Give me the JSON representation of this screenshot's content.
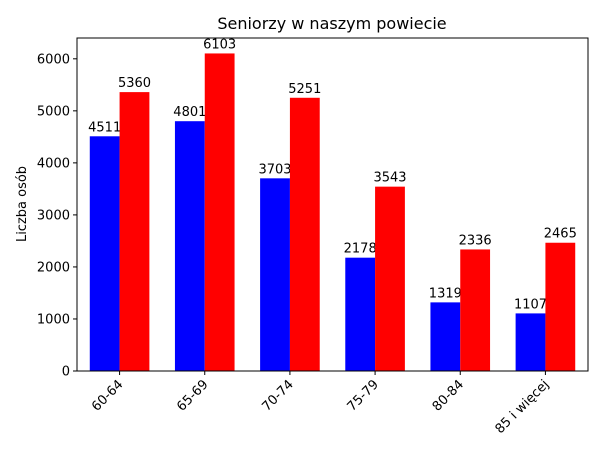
{
  "chart_data": {
    "type": "bar",
    "title": "Seniorzy w naszym powiecie",
    "xlabel": "",
    "ylabel": "Liczba osób",
    "categories": [
      "60-64",
      "65-69",
      "70-74",
      "75-79",
      "80-84",
      "85 i więcej"
    ],
    "series": [
      {
        "color": "#0000ff",
        "values": [
          4511,
          4801,
          3703,
          2178,
          1319,
          1107
        ]
      },
      {
        "color": "#ff0000",
        "values": [
          5360,
          6103,
          5251,
          3543,
          2336,
          2465
        ]
      }
    ],
    "ylim": [
      0,
      6400
    ],
    "yticks": [
      0,
      1000,
      2000,
      3000,
      4000,
      5000,
      6000
    ],
    "grid": false,
    "legend": false
  }
}
